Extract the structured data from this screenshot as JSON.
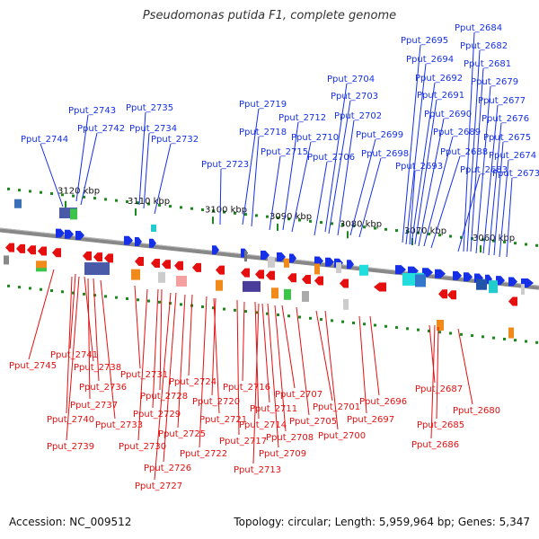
{
  "title": "Pseudomonas putida F1, complete genome",
  "accession_label": "Accession: NC_009512",
  "summary_label": "Topology: circular; Length: 5,959,964 bp; Genes: 5,347",
  "colors": {
    "forward": "#1530e6",
    "reverse": "#e60f0f",
    "tick": "#1a8a1a",
    "backbone": "#888888"
  },
  "scale": {
    "ticks": [
      {
        "label": "3120 kbp"
      },
      {
        "label": "3110 kbp"
      },
      {
        "label": "3100 kbp"
      },
      {
        "label": "3090 kbp"
      },
      {
        "label": "3080 kbp"
      },
      {
        "label": "3070 kbp"
      },
      {
        "label": "3060 kbp"
      }
    ]
  },
  "forward_genes": [
    "Pput_2744",
    "Pput_2743",
    "Pput_2742",
    "Pput_2735",
    "Pput_2734",
    "Pput_2732",
    "Pput_2723",
    "Pput_2719",
    "Pput_2718",
    "Pput_2715",
    "Pput_2712",
    "Pput_2710",
    "Pput_2706",
    "Pput_2704",
    "Pput_2703",
    "Pput_2702",
    "Pput_2699",
    "Pput_2698",
    "Pput_2695",
    "Pput_2694",
    "Pput_2693",
    "Pput_2692",
    "Pput_2691",
    "Pput_2690",
    "Pput_2689",
    "Pput_2688",
    "Pput_2684",
    "Pput_2683",
    "Pput_2682",
    "Pput_2681",
    "Pput_2679",
    "Pput_2677",
    "Pput_2676",
    "Pput_2675",
    "Pput_2674",
    "Pput_2673"
  ],
  "reverse_genes": [
    "Pput_2745",
    "Pput_2741",
    "Pput_2740",
    "Pput_2739",
    "Pput_2738",
    "Pput_2737",
    "Pput_2736",
    "Pput_2733",
    "Pput_2731",
    "Pput_2730",
    "Pput_2729",
    "Pput_2728",
    "Pput_2727",
    "Pput_2726",
    "Pput_2725",
    "Pput_2724",
    "Pput_2722",
    "Pput_2721",
    "Pput_2720",
    "Pput_2717",
    "Pput_2716",
    "Pput_2714",
    "Pput_2713",
    "Pput_2711",
    "Pput_2709",
    "Pput_2708",
    "Pput_2707",
    "Pput_2705",
    "Pput_2701",
    "Pput_2700",
    "Pput_2697",
    "Pput_2696",
    "Pput_2687",
    "Pput_2686",
    "Pput_2685",
    "Pput_2680"
  ]
}
